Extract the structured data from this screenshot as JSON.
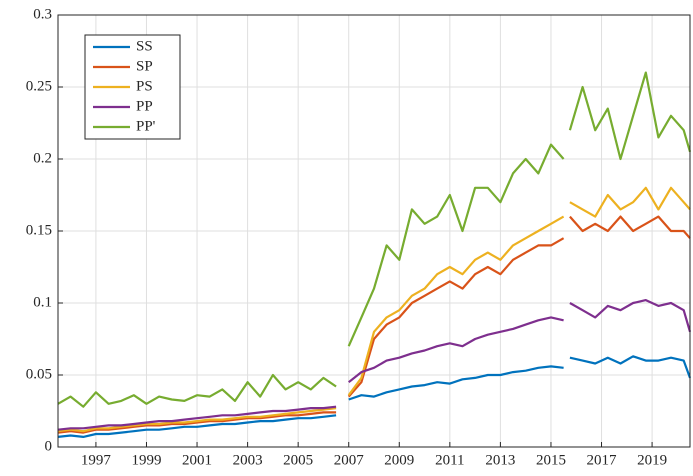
{
  "chart_data": {
    "type": "line",
    "x": [
      1995.5,
      1996,
      1996.5,
      1997,
      1997.5,
      1998,
      1998.5,
      1999,
      1999.5,
      2000,
      2000.5,
      2001,
      2001.5,
      2002,
      2002.5,
      2003,
      2003.5,
      2004,
      2004.5,
      2005,
      2005.5,
      2006,
      2006.5,
      2006.75,
      2007,
      2007.5,
      2008,
      2008.5,
      2009,
      2009.5,
      2010,
      2010.5,
      2011,
      2011.5,
      2012,
      2012.5,
      2013,
      2013.5,
      2014,
      2014.5,
      2015,
      2015.5,
      2015.6,
      2015.75,
      2016.25,
      2016.75,
      2017.25,
      2017.75,
      2018.25,
      2018.75,
      2019.25,
      2019.75,
      2020.25,
      2020.5
    ],
    "series": [
      {
        "name": "SS",
        "color": "#0072BD",
        "values": [
          0.007,
          0.008,
          0.007,
          0.009,
          0.009,
          0.01,
          0.011,
          0.012,
          0.012,
          0.013,
          0.014,
          0.014,
          0.015,
          0.016,
          0.016,
          0.017,
          0.018,
          0.018,
          0.019,
          0.02,
          0.02,
          0.021,
          0.022,
          null,
          0.033,
          0.036,
          0.035,
          0.038,
          0.04,
          0.042,
          0.043,
          0.045,
          0.044,
          0.047,
          0.048,
          0.05,
          0.05,
          0.052,
          0.053,
          0.055,
          0.056,
          0.055,
          null,
          0.062,
          0.06,
          0.058,
          0.062,
          0.058,
          0.063,
          0.06,
          0.06,
          0.062,
          0.06,
          0.048
        ]
      },
      {
        "name": "SP",
        "color": "#D95319",
        "values": [
          0.01,
          0.011,
          0.01,
          0.012,
          0.012,
          0.013,
          0.014,
          0.015,
          0.015,
          0.016,
          0.016,
          0.017,
          0.018,
          0.018,
          0.019,
          0.02,
          0.02,
          0.021,
          0.022,
          0.022,
          0.023,
          0.024,
          0.024,
          null,
          0.035,
          0.045,
          0.075,
          0.085,
          0.09,
          0.1,
          0.105,
          0.11,
          0.115,
          0.11,
          0.12,
          0.125,
          0.12,
          0.13,
          0.135,
          0.14,
          0.14,
          0.145,
          null,
          0.16,
          0.15,
          0.155,
          0.15,
          0.16,
          0.15,
          0.155,
          0.16,
          0.15,
          0.15,
          0.145
        ]
      },
      {
        "name": "PS",
        "color": "#EDB120",
        "values": [
          0.011,
          0.012,
          0.011,
          0.013,
          0.013,
          0.014,
          0.015,
          0.016,
          0.016,
          0.017,
          0.017,
          0.018,
          0.019,
          0.019,
          0.02,
          0.021,
          0.021,
          0.022,
          0.023,
          0.024,
          0.025,
          0.026,
          0.027,
          null,
          0.036,
          0.048,
          0.08,
          0.09,
          0.095,
          0.105,
          0.11,
          0.12,
          0.125,
          0.12,
          0.13,
          0.135,
          0.13,
          0.14,
          0.145,
          0.15,
          0.155,
          0.16,
          null,
          0.17,
          0.165,
          0.16,
          0.175,
          0.165,
          0.17,
          0.18,
          0.165,
          0.18,
          0.17,
          0.165
        ]
      },
      {
        "name": "PP",
        "color": "#7E2F8E",
        "values": [
          0.012,
          0.013,
          0.013,
          0.014,
          0.015,
          0.015,
          0.016,
          0.017,
          0.018,
          0.018,
          0.019,
          0.02,
          0.021,
          0.022,
          0.022,
          0.023,
          0.024,
          0.025,
          0.025,
          0.026,
          0.027,
          0.027,
          0.028,
          null,
          0.045,
          0.052,
          0.055,
          0.06,
          0.062,
          0.065,
          0.067,
          0.07,
          0.072,
          0.07,
          0.075,
          0.078,
          0.08,
          0.082,
          0.085,
          0.088,
          0.09,
          0.088,
          null,
          0.1,
          0.095,
          0.09,
          0.098,
          0.095,
          0.1,
          0.102,
          0.098,
          0.1,
          0.095,
          0.08
        ]
      },
      {
        "name": "PP'",
        "color": "#77AC30",
        "values": [
          0.03,
          0.035,
          0.028,
          0.038,
          0.03,
          0.032,
          0.036,
          0.03,
          0.035,
          0.033,
          0.032,
          0.036,
          0.035,
          0.04,
          0.032,
          0.045,
          0.035,
          0.05,
          0.04,
          0.045,
          0.04,
          0.048,
          0.042,
          null,
          0.07,
          0.09,
          0.11,
          0.14,
          0.13,
          0.165,
          0.155,
          0.16,
          0.175,
          0.15,
          0.18,
          0.18,
          0.17,
          0.19,
          0.2,
          0.19,
          0.21,
          0.2,
          null,
          0.22,
          0.25,
          0.22,
          0.235,
          0.2,
          0.23,
          0.26,
          0.215,
          0.23,
          0.22,
          0.205
        ]
      }
    ],
    "xlim": [
      1995.5,
      2020.5
    ],
    "xticks": [
      1997,
      1999,
      2001,
      2003,
      2005,
      2007,
      2009,
      2011,
      2013,
      2015,
      2017,
      2019
    ],
    "ylim": [
      0,
      0.3
    ],
    "yticks": [
      0,
      0.05,
      0.1,
      0.15,
      0.2,
      0.25,
      0.3
    ],
    "grid": true,
    "legend": "upper left"
  }
}
